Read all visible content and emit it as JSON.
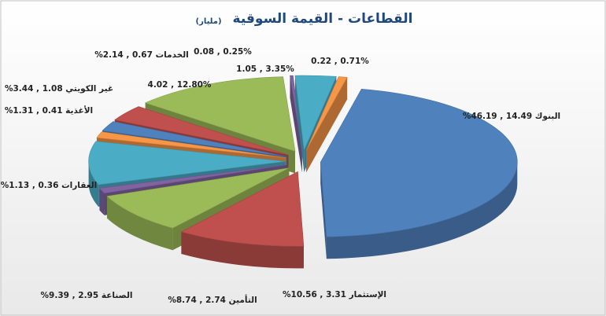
{
  "chart_data": {
    "type": "pie3d",
    "title": "القطاعات - القيمة السوقية",
    "unit": "(مليار)",
    "values": [
      46.19,
      10.56,
      8.74,
      1.13,
      9.39,
      1.31,
      2.14,
      3.44,
      12.8,
      0.25,
      3.35,
      0.71
    ],
    "value_labels": [
      "البنوك 14.49 , 46.19%",
      "الإستثمار 3.31 , 10.56%",
      "التأمين 2.74 , 8.74%",
      "العقارات 0.36 , 1.13%",
      "الصناعة 2.95 , 9.39%",
      "الأغذية 0.41 , 1.31%",
      "الخدمات 0.67 , 2.14%",
      "غير الكويتي 1.08 , 3.44%",
      "4.02 , 12.80%",
      "0.08 , 0.25%",
      "1.05 , 3.35%",
      "0.22 , 0.71%"
    ],
    "colors": [
      "#4f81bd",
      "#c0504d",
      "#9bbb59",
      "#8064a2",
      "#4bacc6",
      "#f79646",
      "#4f81bd",
      "#c0504d",
      "#9bbb59",
      "#8064a2",
      "#4bacc6",
      "#f79646"
    ]
  }
}
